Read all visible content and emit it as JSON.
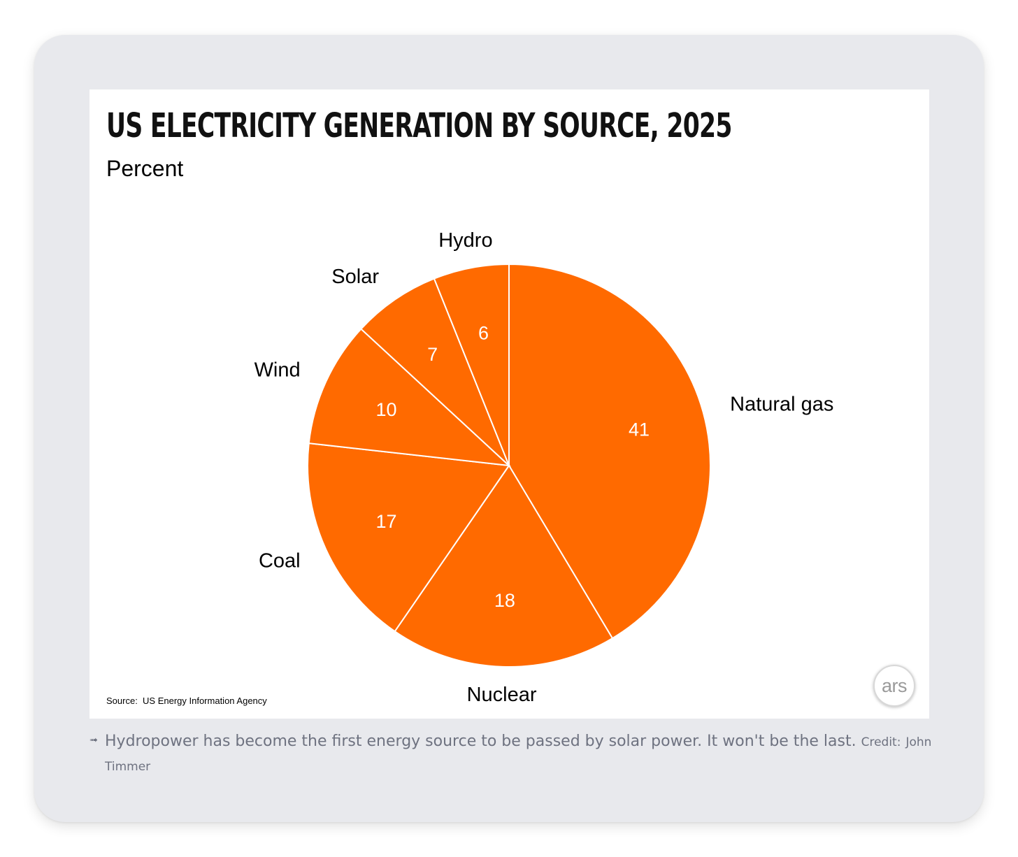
{
  "caption": {
    "icon": "arrow-right-icon",
    "text": "Hydropower has become the first energy source to be passed by solar power. It won't be the last.",
    "credit_label": "Credit:",
    "credit_name": "John Timmer"
  },
  "logo": {
    "text": "ars"
  },
  "source_note": "Source:  US Energy Information Agency",
  "colors": {
    "slice": "#ff6a00",
    "slice_border": "#ffffff",
    "card_background": "#e8e9ed"
  },
  "chart_data": {
    "type": "pie",
    "title": "US Electricity Generation by Source, 2025",
    "subtitle": "Percent",
    "slices": [
      {
        "label": "Natural gas",
        "value": 41
      },
      {
        "label": "Nuclear",
        "value": 18
      },
      {
        "label": "Coal",
        "value": 17
      },
      {
        "label": "Wind",
        "value": 10
      },
      {
        "label": "Solar",
        "value": 7
      },
      {
        "label": "Hydro",
        "value": 6
      }
    ],
    "start_angle": "12 o'clock",
    "direction": "clockwise",
    "value_labels": "inside",
    "category_labels": "outside"
  }
}
